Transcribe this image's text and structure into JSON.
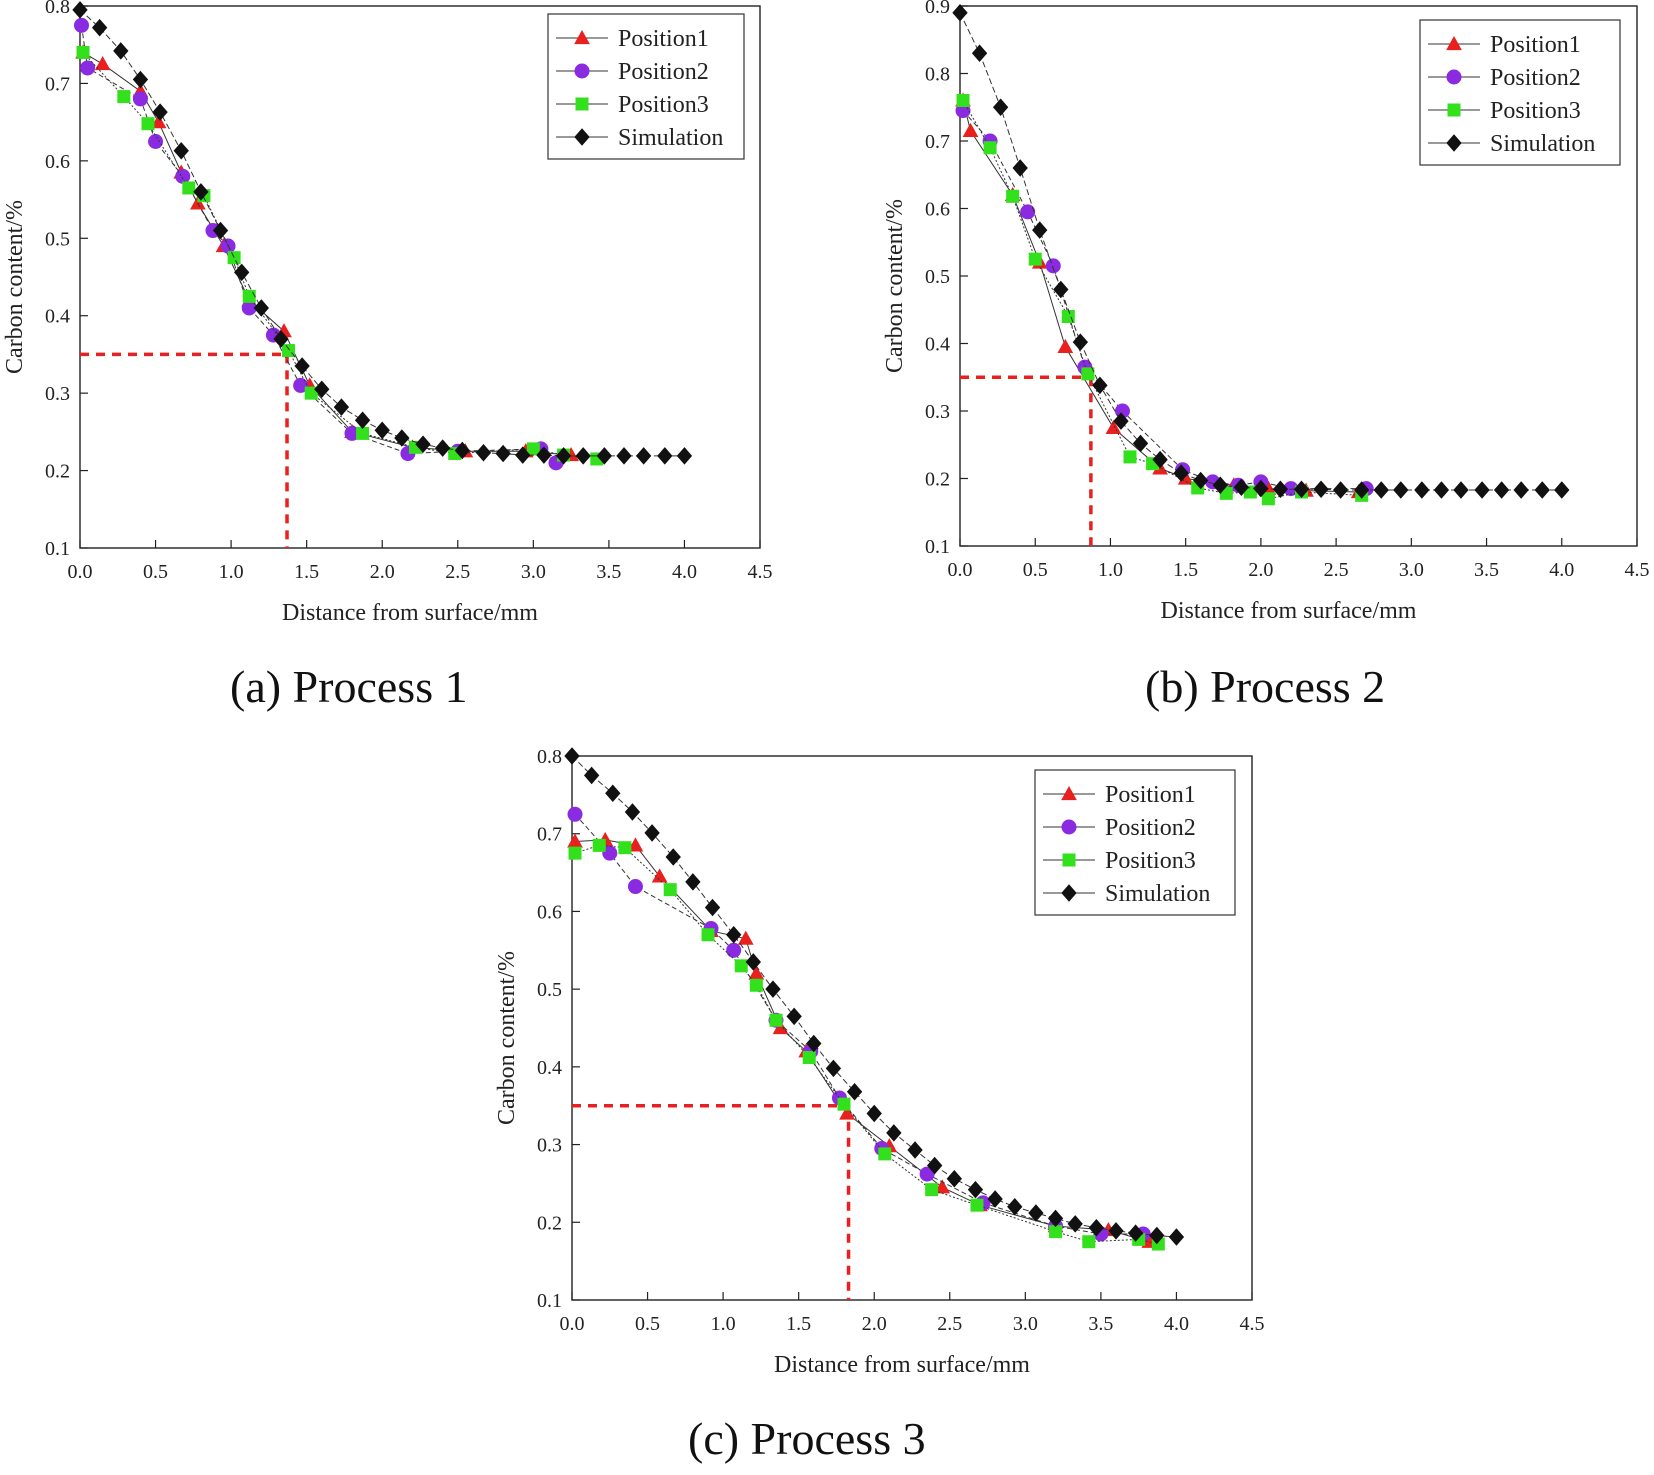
{
  "figure": {
    "captions": [
      "(a) Process 1",
      "(b) Process 2",
      "(c) Process 3"
    ]
  },
  "colors": {
    "position1": "#e8201e",
    "position2": "#8a2be2",
    "position3": "#33e01c",
    "simulation": "#111111",
    "reference_line": "#e8201e"
  },
  "chart_data": [
    {
      "type": "scatter",
      "xlabel": "Distance from surface/mm",
      "ylabel": "Carbon content/%",
      "xlim": [
        0,
        4.5
      ],
      "ylim": [
        0.1,
        0.8
      ],
      "x_ticks": [
        "0.0",
        "0.5",
        "1.0",
        "1.5",
        "2.0",
        "2.5",
        "3.0",
        "3.5",
        "4.0",
        "4.5"
      ],
      "y_ticks": [
        "0.1",
        "0.2",
        "0.3",
        "0.4",
        "0.5",
        "0.6",
        "0.7",
        "0.8"
      ],
      "legend_position": "top-right",
      "grid": false,
      "reference": {
        "x": 1.37,
        "y": 0.35
      },
      "series": [
        {
          "name": "Position1",
          "marker": "triangle",
          "x": [
            0.02,
            0.15,
            0.4,
            0.52,
            0.67,
            0.78,
            0.95,
            1.12,
            1.35,
            1.52,
            1.8,
            2.2,
            2.55,
            2.95,
            3.25
          ],
          "y": [
            0.74,
            0.725,
            0.69,
            0.65,
            0.585,
            0.545,
            0.49,
            0.42,
            0.38,
            0.31,
            0.25,
            0.23,
            0.225,
            0.225,
            0.22
          ]
        },
        {
          "name": "Position2",
          "marker": "circle",
          "x": [
            0.01,
            0.05,
            0.4,
            0.5,
            0.68,
            0.88,
            0.98,
            1.12,
            1.28,
            1.46,
            1.8,
            2.17,
            2.5,
            3.05,
            3.15
          ],
          "y": [
            0.775,
            0.72,
            0.68,
            0.625,
            0.58,
            0.51,
            0.49,
            0.41,
            0.375,
            0.31,
            0.248,
            0.222,
            0.225,
            0.228,
            0.21
          ]
        },
        {
          "name": "Position3",
          "marker": "square",
          "x": [
            0.02,
            0.29,
            0.45,
            0.72,
            0.82,
            1.02,
            1.12,
            1.38,
            1.53,
            1.87,
            2.22,
            2.48,
            3.0,
            3.2,
            3.42
          ],
          "y": [
            0.74,
            0.683,
            0.648,
            0.565,
            0.555,
            0.475,
            0.425,
            0.355,
            0.3,
            0.248,
            0.23,
            0.222,
            0.228,
            0.22,
            0.215
          ]
        },
        {
          "name": "Simulation",
          "marker": "diamond",
          "x": [
            0.0,
            0.13,
            0.27,
            0.4,
            0.53,
            0.67,
            0.8,
            0.93,
            1.07,
            1.2,
            1.33,
            1.47,
            1.6,
            1.73,
            1.87,
            2.0,
            2.13,
            2.27,
            2.4,
            2.53,
            2.67,
            2.8,
            2.93,
            3.07,
            3.2,
            3.33,
            3.47,
            3.6,
            3.73,
            3.87,
            4.0
          ],
          "y": [
            0.795,
            0.772,
            0.742,
            0.705,
            0.663,
            0.613,
            0.56,
            0.51,
            0.456,
            0.41,
            0.37,
            0.335,
            0.305,
            0.282,
            0.265,
            0.252,
            0.242,
            0.234,
            0.229,
            0.226,
            0.223,
            0.222,
            0.22,
            0.22,
            0.219,
            0.219,
            0.219,
            0.219,
            0.219,
            0.219,
            0.219
          ]
        }
      ]
    },
    {
      "type": "scatter",
      "xlabel": "Distance from surface/mm",
      "ylabel": "Carbon content/%",
      "xlim": [
        0,
        4.5
      ],
      "ylim": [
        0.1,
        0.9
      ],
      "x_ticks": [
        "0.0",
        "0.5",
        "1.0",
        "1.5",
        "2.0",
        "2.5",
        "3.0",
        "3.5",
        "4.0",
        "4.5"
      ],
      "y_ticks": [
        "0.1",
        "0.2",
        "0.3",
        "0.4",
        "0.5",
        "0.6",
        "0.7",
        "0.8",
        "0.9"
      ],
      "legend_position": "top-right",
      "grid": false,
      "reference": {
        "x": 0.87,
        "y": 0.35
      },
      "series": [
        {
          "name": "Position1",
          "marker": "triangle",
          "x": [
            0.02,
            0.07,
            0.35,
            0.53,
            0.7,
            1.02,
            1.33,
            1.5,
            1.82,
            2.05,
            2.3,
            2.65
          ],
          "y": [
            0.76,
            0.715,
            0.62,
            0.52,
            0.395,
            0.275,
            0.215,
            0.2,
            0.19,
            0.185,
            0.182,
            0.18
          ]
        },
        {
          "name": "Position2",
          "marker": "circle",
          "x": [
            0.02,
            0.2,
            0.45,
            0.62,
            0.83,
            1.08,
            1.48,
            1.68,
            1.85,
            2.0,
            2.2,
            2.7
          ],
          "y": [
            0.745,
            0.7,
            0.595,
            0.515,
            0.365,
            0.3,
            0.213,
            0.195,
            0.19,
            0.195,
            0.185,
            0.185
          ]
        },
        {
          "name": "Position3",
          "marker": "square",
          "x": [
            0.02,
            0.2,
            0.35,
            0.5,
            0.72,
            0.85,
            1.13,
            1.28,
            1.58,
            1.77,
            1.93,
            2.05,
            2.27,
            2.67
          ],
          "y": [
            0.76,
            0.69,
            0.618,
            0.525,
            0.44,
            0.355,
            0.232,
            0.222,
            0.186,
            0.178,
            0.18,
            0.17,
            0.18,
            0.175
          ]
        },
        {
          "name": "Simulation",
          "marker": "diamond",
          "x": [
            0.0,
            0.13,
            0.27,
            0.4,
            0.53,
            0.67,
            0.8,
            0.93,
            1.07,
            1.2,
            1.33,
            1.47,
            1.6,
            1.73,
            1.87,
            2.0,
            2.13,
            2.27,
            2.4,
            2.53,
            2.67,
            2.8,
            2.93,
            3.07,
            3.2,
            3.33,
            3.47,
            3.6,
            3.73,
            3.87,
            4.0
          ],
          "y": [
            0.89,
            0.83,
            0.75,
            0.66,
            0.568,
            0.48,
            0.402,
            0.338,
            0.285,
            0.252,
            0.228,
            0.208,
            0.197,
            0.19,
            0.187,
            0.185,
            0.184,
            0.184,
            0.184,
            0.183,
            0.183,
            0.183,
            0.183,
            0.183,
            0.183,
            0.183,
            0.183,
            0.183,
            0.183,
            0.183,
            0.183
          ]
        }
      ]
    },
    {
      "type": "scatter",
      "xlabel": "Distance from surface/mm",
      "ylabel": "Carbon content/%",
      "xlim": [
        0,
        4.5
      ],
      "ylim": [
        0.1,
        0.8
      ],
      "x_ticks": [
        "0.0",
        "0.5",
        "1.0",
        "1.5",
        "2.0",
        "2.5",
        "3.0",
        "3.5",
        "4.0",
        "4.5"
      ],
      "y_ticks": [
        "0.1",
        "0.2",
        "0.3",
        "0.4",
        "0.5",
        "0.6",
        "0.7",
        "0.8"
      ],
      "legend_position": "top-right",
      "grid": false,
      "reference": {
        "x": 1.83,
        "y": 0.35
      },
      "series": [
        {
          "name": "Position1",
          "marker": "triangle",
          "x": [
            0.02,
            0.22,
            0.42,
            0.58,
            0.92,
            1.15,
            1.22,
            1.38,
            1.55,
            1.82,
            2.1,
            2.45,
            2.7,
            3.2,
            3.55,
            3.82
          ],
          "y": [
            0.69,
            0.692,
            0.685,
            0.645,
            0.575,
            0.565,
            0.52,
            0.45,
            0.42,
            0.34,
            0.298,
            0.245,
            0.222,
            0.195,
            0.19,
            0.175
          ]
        },
        {
          "name": "Position2",
          "marker": "circle",
          "x": [
            0.02,
            0.25,
            0.42,
            0.92,
            1.07,
            1.35,
            1.58,
            1.77,
            2.05,
            2.35,
            2.72,
            3.2,
            3.5,
            3.78
          ],
          "y": [
            0.725,
            0.675,
            0.632,
            0.578,
            0.55,
            0.46,
            0.42,
            0.36,
            0.295,
            0.262,
            0.225,
            0.195,
            0.185,
            0.185
          ]
        },
        {
          "name": "Position3",
          "marker": "square",
          "x": [
            0.02,
            0.18,
            0.35,
            0.65,
            0.9,
            1.12,
            1.22,
            1.35,
            1.57,
            1.8,
            2.07,
            2.38,
            2.68,
            3.2,
            3.42,
            3.75,
            3.88
          ],
          "y": [
            0.675,
            0.685,
            0.682,
            0.628,
            0.57,
            0.53,
            0.505,
            0.46,
            0.412,
            0.352,
            0.288,
            0.242,
            0.222,
            0.188,
            0.175,
            0.178,
            0.172
          ]
        },
        {
          "name": "Simulation",
          "marker": "diamond",
          "x": [
            0.0,
            0.13,
            0.27,
            0.4,
            0.53,
            0.67,
            0.8,
            0.93,
            1.07,
            1.2,
            1.33,
            1.47,
            1.6,
            1.73,
            1.87,
            2.0,
            2.13,
            2.27,
            2.4,
            2.53,
            2.67,
            2.8,
            2.93,
            3.07,
            3.2,
            3.33,
            3.47,
            3.6,
            3.73,
            3.87,
            4.0
          ],
          "y": [
            0.8,
            0.775,
            0.752,
            0.728,
            0.701,
            0.67,
            0.638,
            0.605,
            0.57,
            0.535,
            0.5,
            0.465,
            0.43,
            0.398,
            0.368,
            0.34,
            0.315,
            0.293,
            0.273,
            0.256,
            0.242,
            0.23,
            0.22,
            0.212,
            0.205,
            0.198,
            0.193,
            0.189,
            0.186,
            0.183,
            0.181
          ]
        }
      ]
    }
  ]
}
